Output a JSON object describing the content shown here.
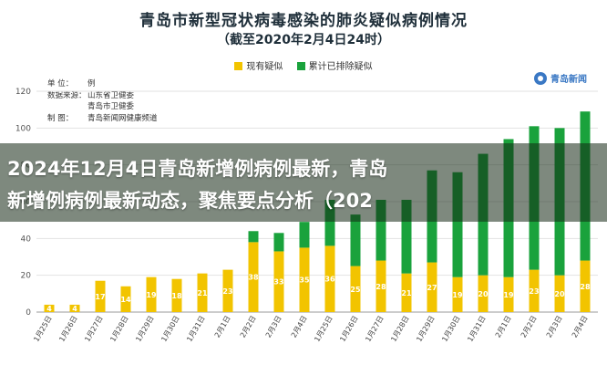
{
  "title": "青岛市新型冠状病毒感染的肺炎疑似病例情况",
  "subtitle": "（截至2020年2月4日24时）",
  "info": [
    {
      "key": "单 位：",
      "value": "例"
    },
    {
      "key": "数据来源：",
      "value": "山东省卫健委"
    },
    {
      "key": "",
      "value": "青岛市卫健委"
    },
    {
      "key": "制 图：",
      "value": "青岛新闻网健康频道"
    }
  ],
  "logo_text": "青岛新闻",
  "banner": {
    "line1": "2024年12月4日青岛新增例病例最新，青岛",
    "line2": "新增例病例最新动态，聚焦要点分析（202"
  },
  "colors": {
    "existing": "#f2c400",
    "excluded": "#1aa23c"
  },
  "chart_data": {
    "type": "bar",
    "stacked": true,
    "title": "青岛市新型冠状病毒感染的肺炎疑似病例情况",
    "subtitle": "（截至2020年2月4日24时）",
    "categories": [
      "1月25日",
      "1月26日",
      "1月27日",
      "1月28日",
      "1月29日",
      "1月30日",
      "1月31日",
      "2月1日",
      "2月2日",
      "2月3日",
      "2月4日",
      "1月25日",
      "1月26日",
      "1月27日",
      "1月28日",
      "1月29日",
      "1月30日",
      "1月31日",
      "2月1日",
      "2月2日",
      "2月3日",
      "2月4日"
    ],
    "series": [
      {
        "name": "现有疑似",
        "values": [
          4,
          4,
          17,
          14,
          19,
          18,
          21,
          23,
          38,
          33,
          35,
          36,
          25,
          28,
          21,
          27,
          19,
          20,
          19,
          23,
          20,
          28
        ]
      },
      {
        "name": "累计已排除疑似",
        "values": [
          0,
          0,
          0,
          0,
          0,
          0,
          0,
          0,
          6,
          10,
          14,
          25,
          28,
          33,
          40,
          50,
          57,
          66,
          75,
          78,
          80,
          81
        ]
      }
    ],
    "yticks": [
      0,
      20,
      40,
      60,
      80,
      100,
      120
    ],
    "ylim": [
      0,
      120
    ],
    "legend_position": "top",
    "data_labels": true
  }
}
